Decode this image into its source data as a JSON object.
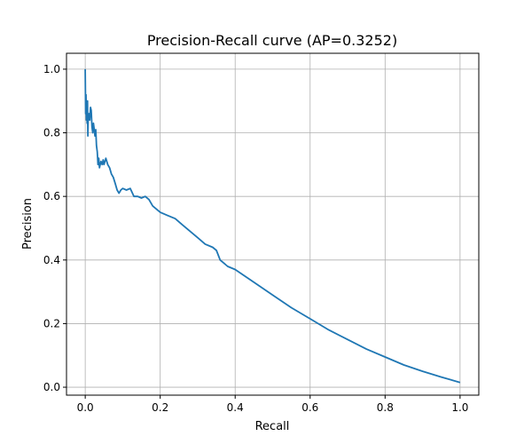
{
  "chart_data": {
    "type": "line",
    "title": "Precision-Recall curve (AP=0.3252)",
    "xlabel": "Recall",
    "ylabel": "Precision",
    "xlim": [
      -0.05,
      1.05
    ],
    "ylim": [
      -0.025,
      1.05
    ],
    "x_ticks": [
      0.0,
      0.2,
      0.4,
      0.6,
      0.8,
      1.0
    ],
    "x_tick_labels": [
      "0.0",
      "0.2",
      "0.4",
      "0.6",
      "0.8",
      "1.0"
    ],
    "y_ticks": [
      0.0,
      0.2,
      0.4,
      0.6,
      0.8,
      1.0
    ],
    "y_tick_labels": [
      "0.0",
      "0.2",
      "0.4",
      "0.6",
      "0.8",
      "1.0"
    ],
    "grid": true,
    "legend": "none",
    "series": [
      {
        "color": "#1f77b4",
        "x": [
          0.0,
          0.001,
          0.002,
          0.003,
          0.004,
          0.005,
          0.006,
          0.007,
          0.008,
          0.01,
          0.012,
          0.014,
          0.016,
          0.018,
          0.02,
          0.022,
          0.024,
          0.026,
          0.028,
          0.03,
          0.032,
          0.034,
          0.036,
          0.038,
          0.04,
          0.042,
          0.045,
          0.048,
          0.05,
          0.055,
          0.06,
          0.065,
          0.07,
          0.075,
          0.08,
          0.085,
          0.09,
          0.095,
          0.1,
          0.11,
          0.12,
          0.13,
          0.14,
          0.15,
          0.16,
          0.17,
          0.18,
          0.2,
          0.22,
          0.24,
          0.26,
          0.28,
          0.3,
          0.32,
          0.34,
          0.35,
          0.36,
          0.38,
          0.4,
          0.45,
          0.5,
          0.55,
          0.6,
          0.65,
          0.7,
          0.75,
          0.8,
          0.85,
          0.9,
          0.95,
          1.0
        ],
        "y": [
          1.0,
          0.86,
          0.92,
          0.84,
          0.87,
          0.83,
          0.9,
          0.79,
          0.85,
          0.86,
          0.84,
          0.88,
          0.87,
          0.82,
          0.8,
          0.83,
          0.81,
          0.79,
          0.81,
          0.76,
          0.74,
          0.7,
          0.72,
          0.69,
          0.7,
          0.71,
          0.7,
          0.715,
          0.7,
          0.72,
          0.7,
          0.69,
          0.67,
          0.66,
          0.64,
          0.62,
          0.61,
          0.62,
          0.625,
          0.62,
          0.625,
          0.6,
          0.6,
          0.595,
          0.6,
          0.59,
          0.57,
          0.55,
          0.54,
          0.53,
          0.51,
          0.49,
          0.47,
          0.45,
          0.44,
          0.43,
          0.4,
          0.38,
          0.37,
          0.33,
          0.29,
          0.25,
          0.215,
          0.18,
          0.15,
          0.12,
          0.095,
          0.07,
          0.05,
          0.032,
          0.015
        ]
      }
    ]
  }
}
